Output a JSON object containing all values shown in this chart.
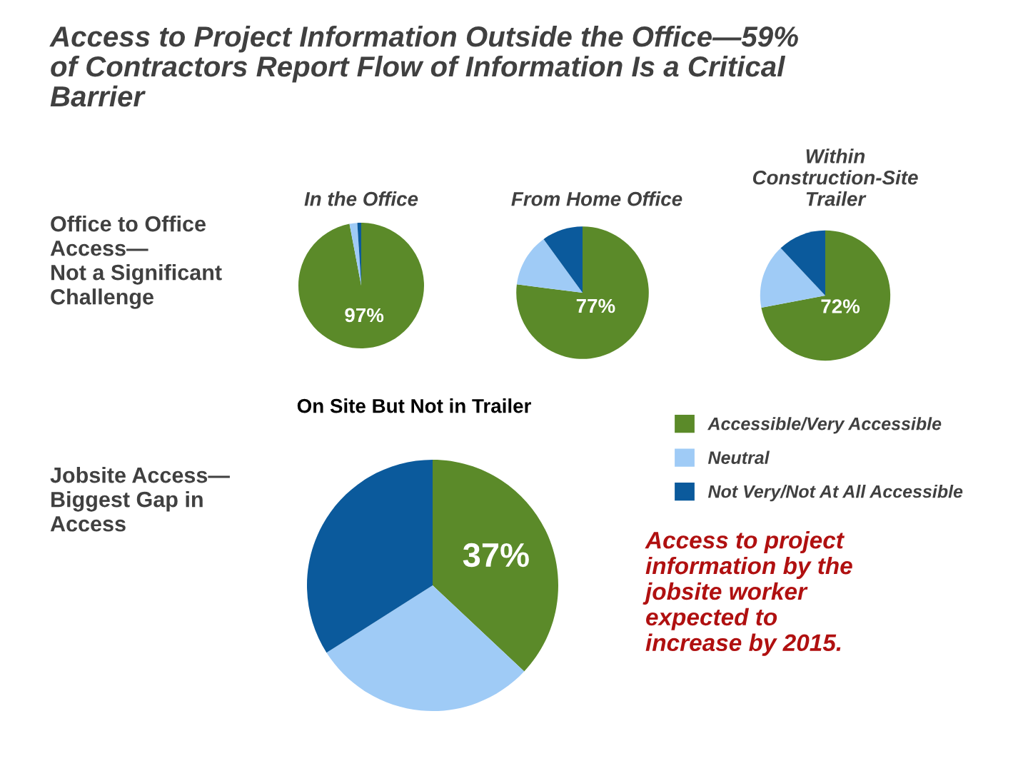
{
  "chart_data": [
    {
      "type": "pie",
      "title": "In the Office",
      "categories": [
        "Accessible/Very Accessible",
        "Neutral",
        "Not Very/Not At All Accessible"
      ],
      "values": [
        97,
        2,
        1
      ],
      "colors": [
        "#5b8a29",
        "#9fcbf6",
        "#0b5a9c"
      ],
      "value_labels": [
        "97%",
        null,
        null
      ],
      "legend": "right",
      "annotations": [
        "Access to Project Information Outside the Office—59%\nof Contractors Report Flow of Information Is a Critical\nBarrier",
        "Office to Office\nAccess—\nNot a Significant\nChallenge"
      ]
    },
    {
      "type": "pie",
      "title": "From Home Office",
      "categories": [
        null,
        null,
        null
      ],
      "values": [
        77,
        13,
        10
      ],
      "colors": [
        "#5b8a29",
        "#9fcbf6",
        "#0b5a9c"
      ],
      "value_labels": [
        "77%",
        null,
        null
      ]
    },
    {
      "type": "pie",
      "title": "Within\nConstruction-Site\nTrailer",
      "categories": [
        null,
        null,
        null
      ],
      "values": [
        72,
        16,
        12
      ],
      "colors": [
        "#5b8a29",
        "#9fcbf6",
        "#0b5a9c"
      ],
      "value_labels": [
        "72%",
        null,
        null
      ]
    },
    {
      "type": "pie",
      "title": "On Site But Not in Trailer",
      "categories": [
        null,
        null,
        null
      ],
      "values": [
        37,
        29,
        34
      ],
      "colors": [
        "#5b8a29",
        "#9fcbf6",
        "#0b5a9c"
      ],
      "value_labels": [
        "37%",
        null,
        null
      ],
      "annotations": [
        "Jobsite Access—\nBiggest Gap in\nAccess",
        "Access to project\ninformation by the\njobsite worker\nexpected to\nincrease by 2015."
      ]
    }
  ]
}
